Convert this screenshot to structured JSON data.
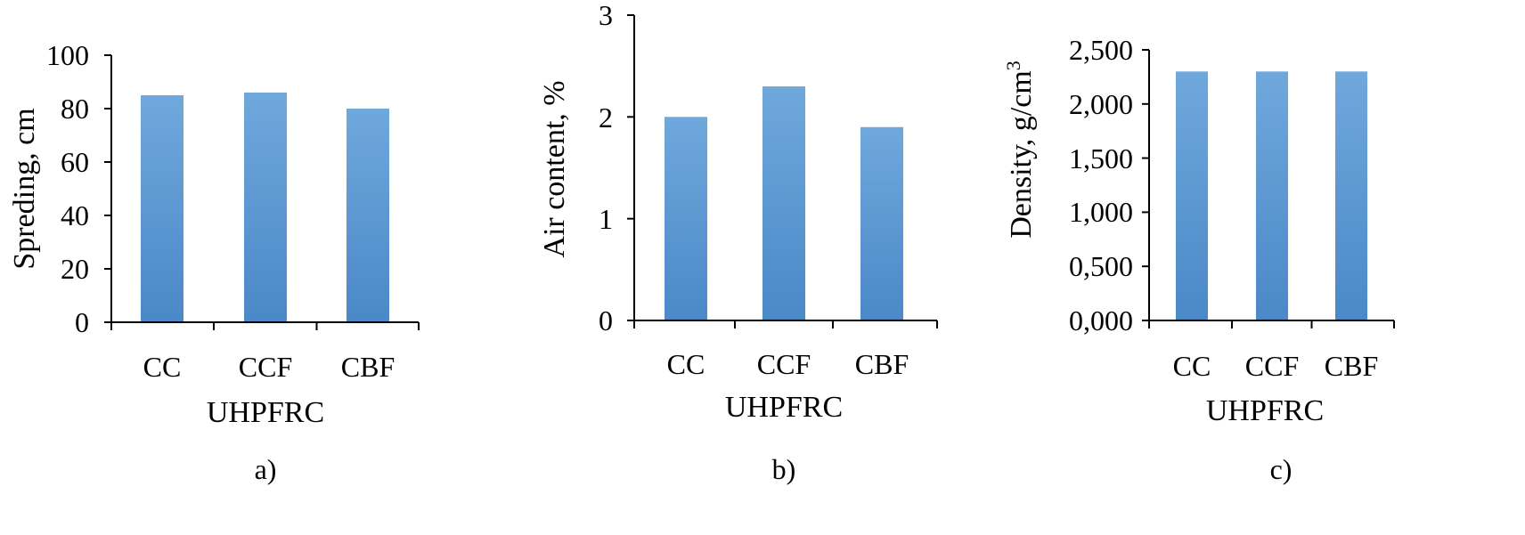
{
  "chart_data": [
    {
      "type": "bar",
      "categories": [
        "CC",
        "CCF",
        "CBF"
      ],
      "values": [
        85,
        86,
        80
      ],
      "ylabel": "Spreding, cm",
      "xlabel": "UHPFRC",
      "ylim": [
        0,
        100
      ],
      "yticks": [
        "0",
        "20",
        "40",
        "60",
        "80",
        "100"
      ],
      "ytick_values": [
        0,
        20,
        40,
        60,
        80,
        100
      ],
      "panel_label": "a)",
      "grid": false,
      "legend": "none",
      "bar_color": "#5B9BD5"
    },
    {
      "type": "bar",
      "categories": [
        "CC",
        "CCF",
        "CBF"
      ],
      "values": [
        2.0,
        2.3,
        1.9
      ],
      "ylabel": "Air content, %",
      "xlabel": "UHPFRC",
      "ylim": [
        0,
        3
      ],
      "yticks": [
        "0",
        "1",
        "2",
        "3"
      ],
      "ytick_values": [
        0,
        1,
        2,
        3
      ],
      "panel_label": "b)",
      "grid": false,
      "legend": "none",
      "bar_color": "#5B9BD5"
    },
    {
      "type": "bar",
      "categories": [
        "CC",
        "CCF",
        "CBF"
      ],
      "values": [
        2.3,
        2.3,
        2.3
      ],
      "ylabel": "Density, g/cm",
      "ylabel_superscript": "3",
      "xlabel": "UHPFRC",
      "ylim": [
        0,
        2.5
      ],
      "yticks": [
        "0,000",
        "0,500",
        "1,000",
        "1,500",
        "2,000",
        "2,500"
      ],
      "ytick_values": [
        0,
        0.5,
        1.0,
        1.5,
        2.0,
        2.5
      ],
      "panel_label": "c)",
      "grid": false,
      "legend": "none",
      "bar_color": "#5B9BD5"
    }
  ]
}
